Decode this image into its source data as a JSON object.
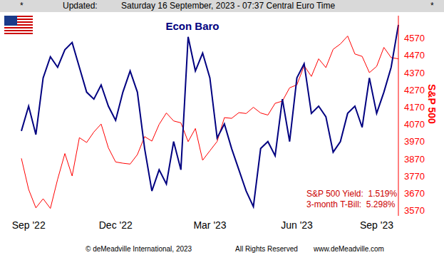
{
  "header": {
    "left_mark": "*",
    "label": "Updated:",
    "timestamp": "Saturday 16 September, 2023 - 07:37 Central Euro Time",
    "right_mark": "*"
  },
  "chart_data": {
    "type": "line",
    "title": "Econ Baro",
    "y_label": "S&P 500",
    "grid": false,
    "categories": [
      null,
      "Sep '22",
      null,
      null,
      null,
      null,
      null,
      null,
      null,
      null,
      null,
      null,
      null,
      "Dec '22",
      null,
      null,
      null,
      null,
      null,
      null,
      null,
      null,
      null,
      null,
      null,
      null,
      "Mar '23",
      null,
      null,
      null,
      null,
      null,
      null,
      null,
      null,
      null,
      null,
      null,
      "Jun '23",
      null,
      null,
      null,
      null,
      null,
      null,
      null,
      null,
      null,
      null,
      "Sep '23",
      null,
      null,
      null
    ],
    "series": [
      {
        "name": "S&P 500",
        "color": "#ff0000",
        "axis": "y",
        "values": [
          3873,
          3693,
          3586,
          3639,
          3583,
          3752,
          3901,
          3771,
          3993,
          3965,
          4026,
          4072,
          3934,
          3852,
          3845,
          3840,
          3895,
          3999,
          3973,
          4070,
          4136,
          4090,
          4079,
          3970,
          4046,
          3862,
          3917,
          3971,
          4109,
          4105,
          4138,
          4133,
          4169,
          4136,
          4124,
          4192,
          4205,
          4282,
          4299,
          4410,
          4348,
          4450,
          4399,
          4505,
          4536,
          4582,
          4478,
          4464,
          4370,
          4406,
          4516,
          4457,
          4450
        ]
      },
      {
        "name": "Econ Baro",
        "color": "#000080",
        "axis": "y2",
        "values": [
          42.4,
          54.8,
          40.6,
          68.9,
          79.5,
          74.2,
          83,
          86.6,
          74.2,
          61.8,
          58.3,
          65.4,
          54.8,
          47.7,
          61.8,
          72.4,
          61.8,
          33.6,
          12.4,
          23,
          15.9,
          37.1,
          23,
          89.4,
          72.4,
          81.3,
          68.9,
          38.9,
          45.9,
          33.6,
          23,
          12.4,
          4.6,
          33.6,
          37.1,
          30,
          58.3,
          37.1,
          68.9,
          76,
          51.2,
          54.8,
          49.5,
          31.8,
          37.1,
          51.2,
          54.8,
          44.2,
          68.9,
          51.2,
          61.8,
          74.2,
          95.4
        ]
      }
    ],
    "ylim": [
      3540,
      4700
    ],
    "yticks": [
      3570,
      3670,
      3770,
      3870,
      3970,
      4070,
      4170,
      4270,
      4370,
      4470,
      4570
    ],
    "y2lim": [
      0,
      100
    ],
    "annotations": [
      "S&P 500 Yield:  1.519%",
      "3-month T-Bill:  5.298%"
    ]
  },
  "footer": [
    "© deMeadville International, 2023",
    "All Rights Reserved",
    "www.deMeadville.com"
  ]
}
